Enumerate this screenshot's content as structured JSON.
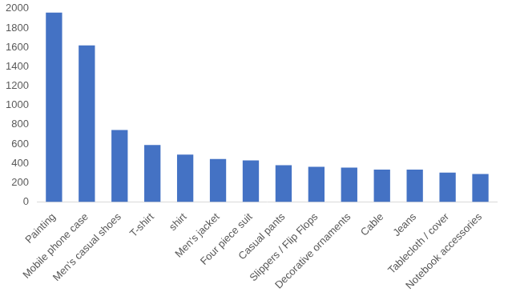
{
  "chart_data": {
    "type": "bar",
    "categories": [
      "Painting",
      "Mobile phone case",
      "Men's casual shoes",
      "T-shirt",
      "shirt",
      "Men's jacket",
      "Four piece suit",
      "Casual pants",
      "Slippers / Flip Flops",
      "Decorative ornaments",
      "Cable",
      "Jeans",
      "Tablecloth / cover",
      "Notebook accessories"
    ],
    "values": [
      1960,
      1620,
      745,
      590,
      490,
      445,
      430,
      380,
      365,
      355,
      335,
      335,
      305,
      290
    ],
    "color": "#4472c4",
    "ylim": [
      0,
      2000
    ],
    "yticks": [
      0,
      200,
      400,
      600,
      800,
      1000,
      1200,
      1400,
      1600,
      1800,
      2000
    ],
    "grid": false
  }
}
